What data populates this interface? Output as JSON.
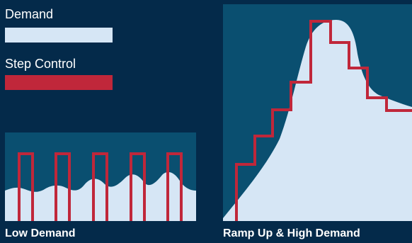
{
  "colors": {
    "background": "#042a4a",
    "panel": "#0a4f70",
    "demand": "#d6e6f5",
    "step_control": "#c0273a",
    "text": "#ffffff"
  },
  "legend": {
    "demand_label": "Demand",
    "step_control_label": "Step Control"
  },
  "panels": {
    "low_demand_caption": "Low Demand",
    "ramp_caption": "Ramp Up & High Demand"
  }
}
